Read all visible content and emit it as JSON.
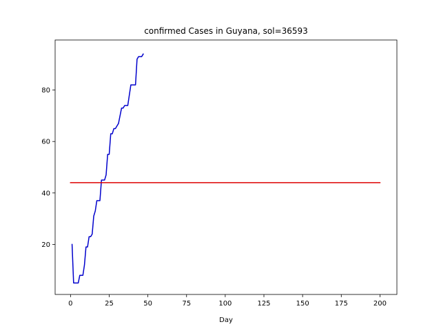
{
  "chart_data": {
    "type": "line",
    "title": "confirmed Cases in Guyana, sol=36593",
    "xlabel": "Day",
    "ylabel": "",
    "xlim": [
      -9.95,
      210.95
    ],
    "ylim": [
      0.55,
      99.45
    ],
    "xticks": [
      0,
      25,
      50,
      75,
      100,
      125,
      150,
      175,
      200
    ],
    "yticks": [
      20,
      40,
      60,
      80
    ],
    "grid": false,
    "series": [
      {
        "color": "#0000cc",
        "x": [
          1,
          2,
          3,
          4,
          5,
          6,
          7,
          8,
          9,
          10,
          11,
          12,
          13,
          14,
          15,
          16,
          17,
          18,
          19,
          20,
          21,
          22,
          23,
          24,
          25,
          26,
          27,
          28,
          29,
          30,
          31,
          32,
          33,
          34,
          35,
          36,
          37,
          38,
          39,
          40,
          41,
          42,
          43,
          44,
          45,
          46,
          47
        ],
        "y": [
          20,
          5,
          5,
          5,
          5,
          8,
          8,
          8,
          12,
          19,
          19,
          23,
          23,
          24,
          31,
          33,
          37,
          37,
          37,
          45,
          45,
          45,
          47,
          55,
          55,
          63,
          63,
          65,
          65,
          66,
          67,
          70,
          73,
          73,
          74,
          74,
          74,
          78,
          82,
          82,
          82,
          82,
          92,
          93,
          93,
          93,
          94
        ]
      },
      {
        "color": "#dd0000",
        "x": [
          0,
          200
        ],
        "y": [
          44,
          44
        ]
      }
    ]
  }
}
